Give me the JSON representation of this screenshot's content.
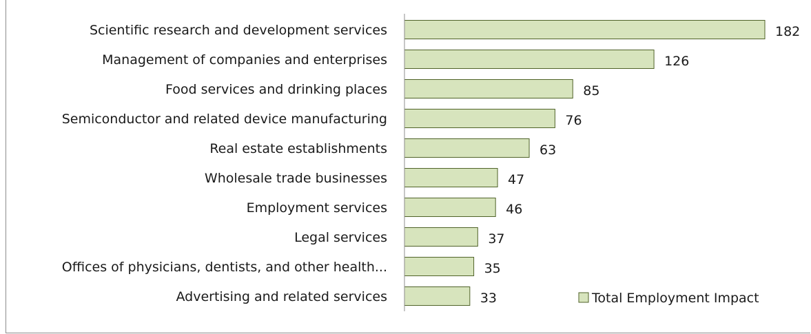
{
  "chart_data": {
    "type": "bar",
    "orientation": "horizontal",
    "categories": [
      "Scientific research and development services",
      "Management of companies and enterprises",
      "Food services and drinking places",
      "Semiconductor and related device manufacturing",
      "Real estate establishments",
      "Wholesale trade businesses",
      "Employment services",
      "Legal services",
      "Offices of physicians, dentists, and other health...",
      "Advertising and related services"
    ],
    "series": [
      {
        "name": "Total Employment Impact",
        "values": [
          182,
          126,
          85,
          76,
          63,
          47,
          46,
          37,
          35,
          33
        ]
      }
    ],
    "xlim": [
      0,
      182
    ],
    "grid": false,
    "legend": "bottom-right",
    "colors": {
      "bar_fill": "#d7e4bd",
      "bar_stroke": "#4f6228",
      "axis": "#8c8c8c",
      "text": "#1a1a1a"
    }
  }
}
